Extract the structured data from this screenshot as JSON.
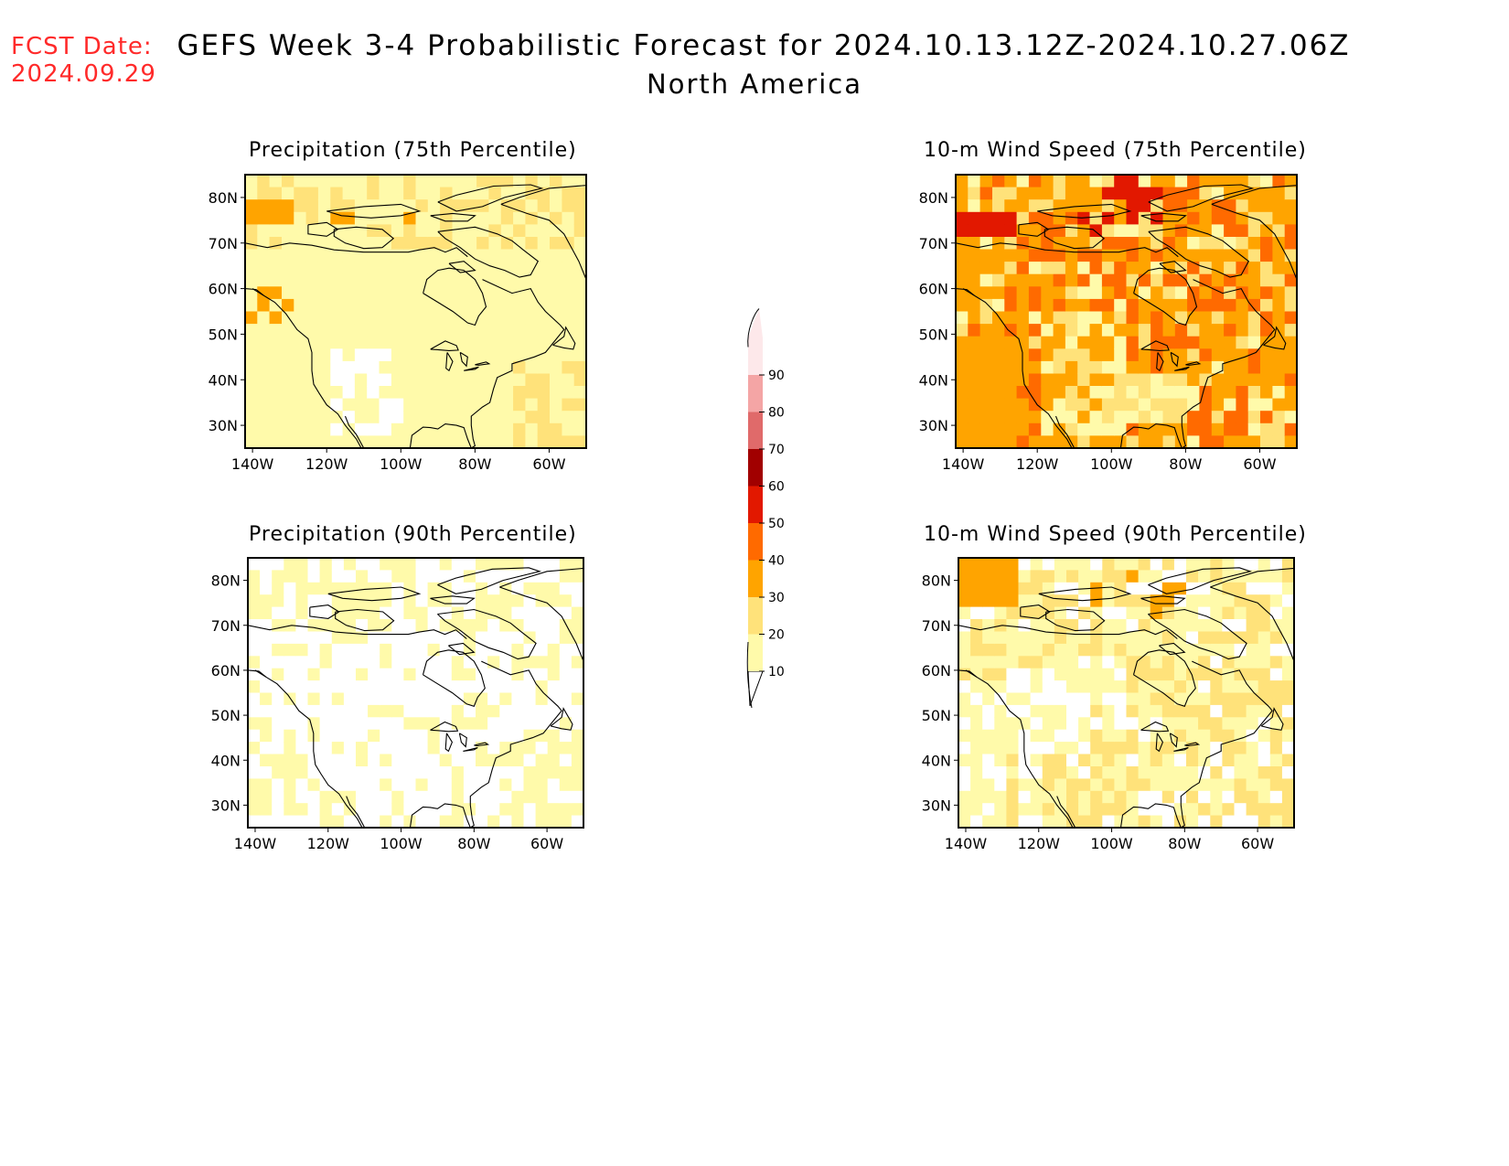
{
  "header": {
    "fcst_label": "FCST Date:",
    "fcst_date": "2024.09.29",
    "title": "GEFS Week 3-4 Probabilistic Forecast for 2024.10.13.12Z-2024.10.27.06Z",
    "subtitle": "North America"
  },
  "axes": {
    "lat_ticks": [
      "80N",
      "70N",
      "60N",
      "50N",
      "40N",
      "30N"
    ],
    "lon_ticks": [
      "140W",
      "120W",
      "100W",
      "80W",
      "60W"
    ]
  },
  "panels": [
    {
      "id": "precip75",
      "title": "Precipitation (75th Percentile)",
      "base": 1
    },
    {
      "id": "precip90",
      "title": "Precipitation (90th Percentile)",
      "base": 0
    },
    {
      "id": "wind75",
      "title": "10-m Wind Speed (75th Percentile)",
      "base": 3
    },
    {
      "id": "wind90",
      "title": "10-m Wind Speed (90th Percentile)",
      "base": 1
    }
  ],
  "colorbar": {
    "labels": [
      "10",
      "20",
      "30",
      "40",
      "50",
      "60",
      "70",
      "80",
      "90"
    ],
    "colors": [
      "#fffaaa",
      "#ffe27a",
      "#ffa400",
      "#ff6a00",
      "#e21800",
      "#a10000",
      "#e06a6a",
      "#f4a5a5",
      "#fde8ea"
    ]
  }
}
